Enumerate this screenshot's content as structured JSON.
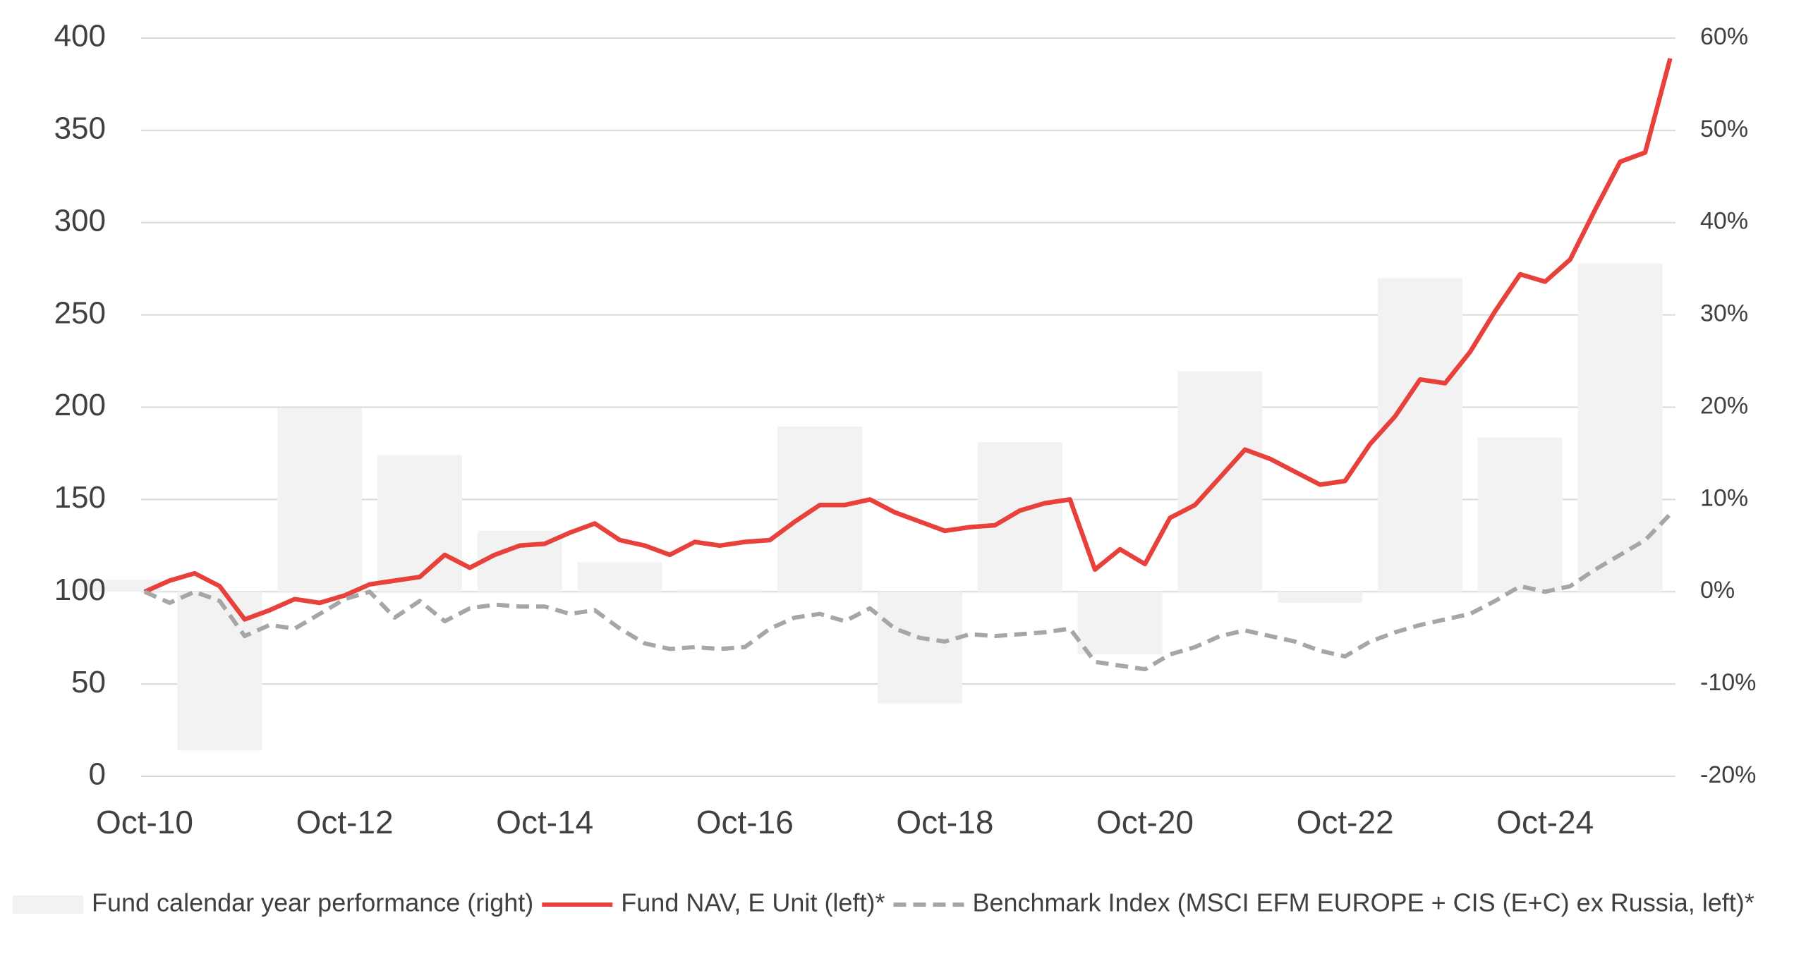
{
  "chart_data": {
    "type": "combo",
    "categories": [
      null,
      "Oct-10",
      null,
      null,
      null,
      null,
      null,
      null,
      null,
      "Oct-12",
      null,
      null,
      null,
      null,
      null,
      null,
      null,
      "Oct-14",
      null,
      null,
      null,
      null,
      null,
      null,
      null,
      "Oct-16",
      null,
      null,
      null,
      null,
      null,
      null,
      null,
      "Oct-18",
      null,
      null,
      null,
      null,
      null,
      null,
      null,
      "Oct-20",
      null,
      null,
      null,
      null,
      null,
      null,
      null,
      "Oct-22",
      null,
      null,
      null,
      null,
      null,
      null,
      null,
      "Oct-24",
      null,
      null,
      null,
      null,
      null
    ],
    "series": [
      {
        "name": "Fund calendar year performance (right)",
        "type": "bar",
        "axis": "y2",
        "color": "#f2f2f2",
        "values": [
          1.3,
          null,
          null,
          null,
          -17.2,
          null,
          null,
          null,
          19.9,
          null,
          null,
          null,
          14.8,
          null,
          null,
          null,
          6.6,
          null,
          null,
          null,
          3.2,
          null,
          null,
          null,
          0.2,
          null,
          null,
          null,
          17.9,
          null,
          null,
          null,
          -12.1,
          null,
          null,
          null,
          16.2,
          null,
          null,
          null,
          -6.8,
          null,
          null,
          null,
          23.9,
          null,
          null,
          null,
          -1.2,
          null,
          null,
          null,
          34,
          null,
          null,
          null,
          16.7,
          null,
          null,
          null,
          35.6,
          null,
          null
        ]
      },
      {
        "name": "Fund NAV, E Unit (left)*",
        "type": "line",
        "color": "#e8413c",
        "dashed": false,
        "values": [
          null,
          100,
          106,
          110,
          103,
          85,
          90,
          96,
          94,
          98,
          104,
          106,
          108,
          120,
          113,
          120,
          125,
          126,
          132,
          137,
          128,
          125,
          120,
          127,
          125,
          127,
          128,
          138,
          147,
          147,
          150,
          143,
          138,
          133,
          135,
          136,
          144,
          148,
          150,
          112,
          123,
          115,
          140,
          147,
          162,
          177,
          172,
          165,
          158,
          160,
          180,
          195,
          215,
          213,
          230,
          252,
          272,
          268,
          280,
          307,
          333,
          338,
          389
        ]
      },
      {
        "name": "Benchmark Index (MSCI EFM EUROPE + CIS (E+C) ex Russia, left)*",
        "type": "line",
        "color": "#a6a6a6",
        "dashed": true,
        "values": [
          null,
          100,
          94,
          100,
          95,
          76,
          82,
          80,
          88,
          96,
          100,
          86,
          95,
          84,
          91,
          93,
          92,
          92,
          88,
          90,
          80,
          72,
          69,
          70,
          69,
          70,
          80,
          86,
          88,
          84,
          91,
          80,
          75,
          73,
          77,
          76,
          77,
          78,
          80,
          62,
          60,
          58,
          66,
          70,
          76,
          79,
          76,
          73,
          68,
          65,
          73,
          78,
          82,
          85,
          88,
          95,
          103,
          100,
          103,
          112,
          120,
          128,
          142
        ]
      }
    ],
    "ylim": [
      0,
      400
    ],
    "yticks": [
      0,
      50,
      100,
      150,
      200,
      250,
      300,
      350,
      400
    ],
    "y2lim": [
      -20,
      60
    ],
    "y2ticks": [
      {
        "value": -20,
        "label": "-20%"
      },
      {
        "value": -10,
        "label": "-10%"
      },
      {
        "value": 0,
        "label": "0%"
      },
      {
        "value": 10,
        "label": "10%"
      },
      {
        "value": 20,
        "label": "20%"
      },
      {
        "value": 30,
        "label": "30%"
      },
      {
        "value": 40,
        "label": "40%"
      },
      {
        "value": 50,
        "label": "50%"
      },
      {
        "value": 60,
        "label": "60%"
      }
    ],
    "grid": true,
    "legend": "bottom"
  }
}
